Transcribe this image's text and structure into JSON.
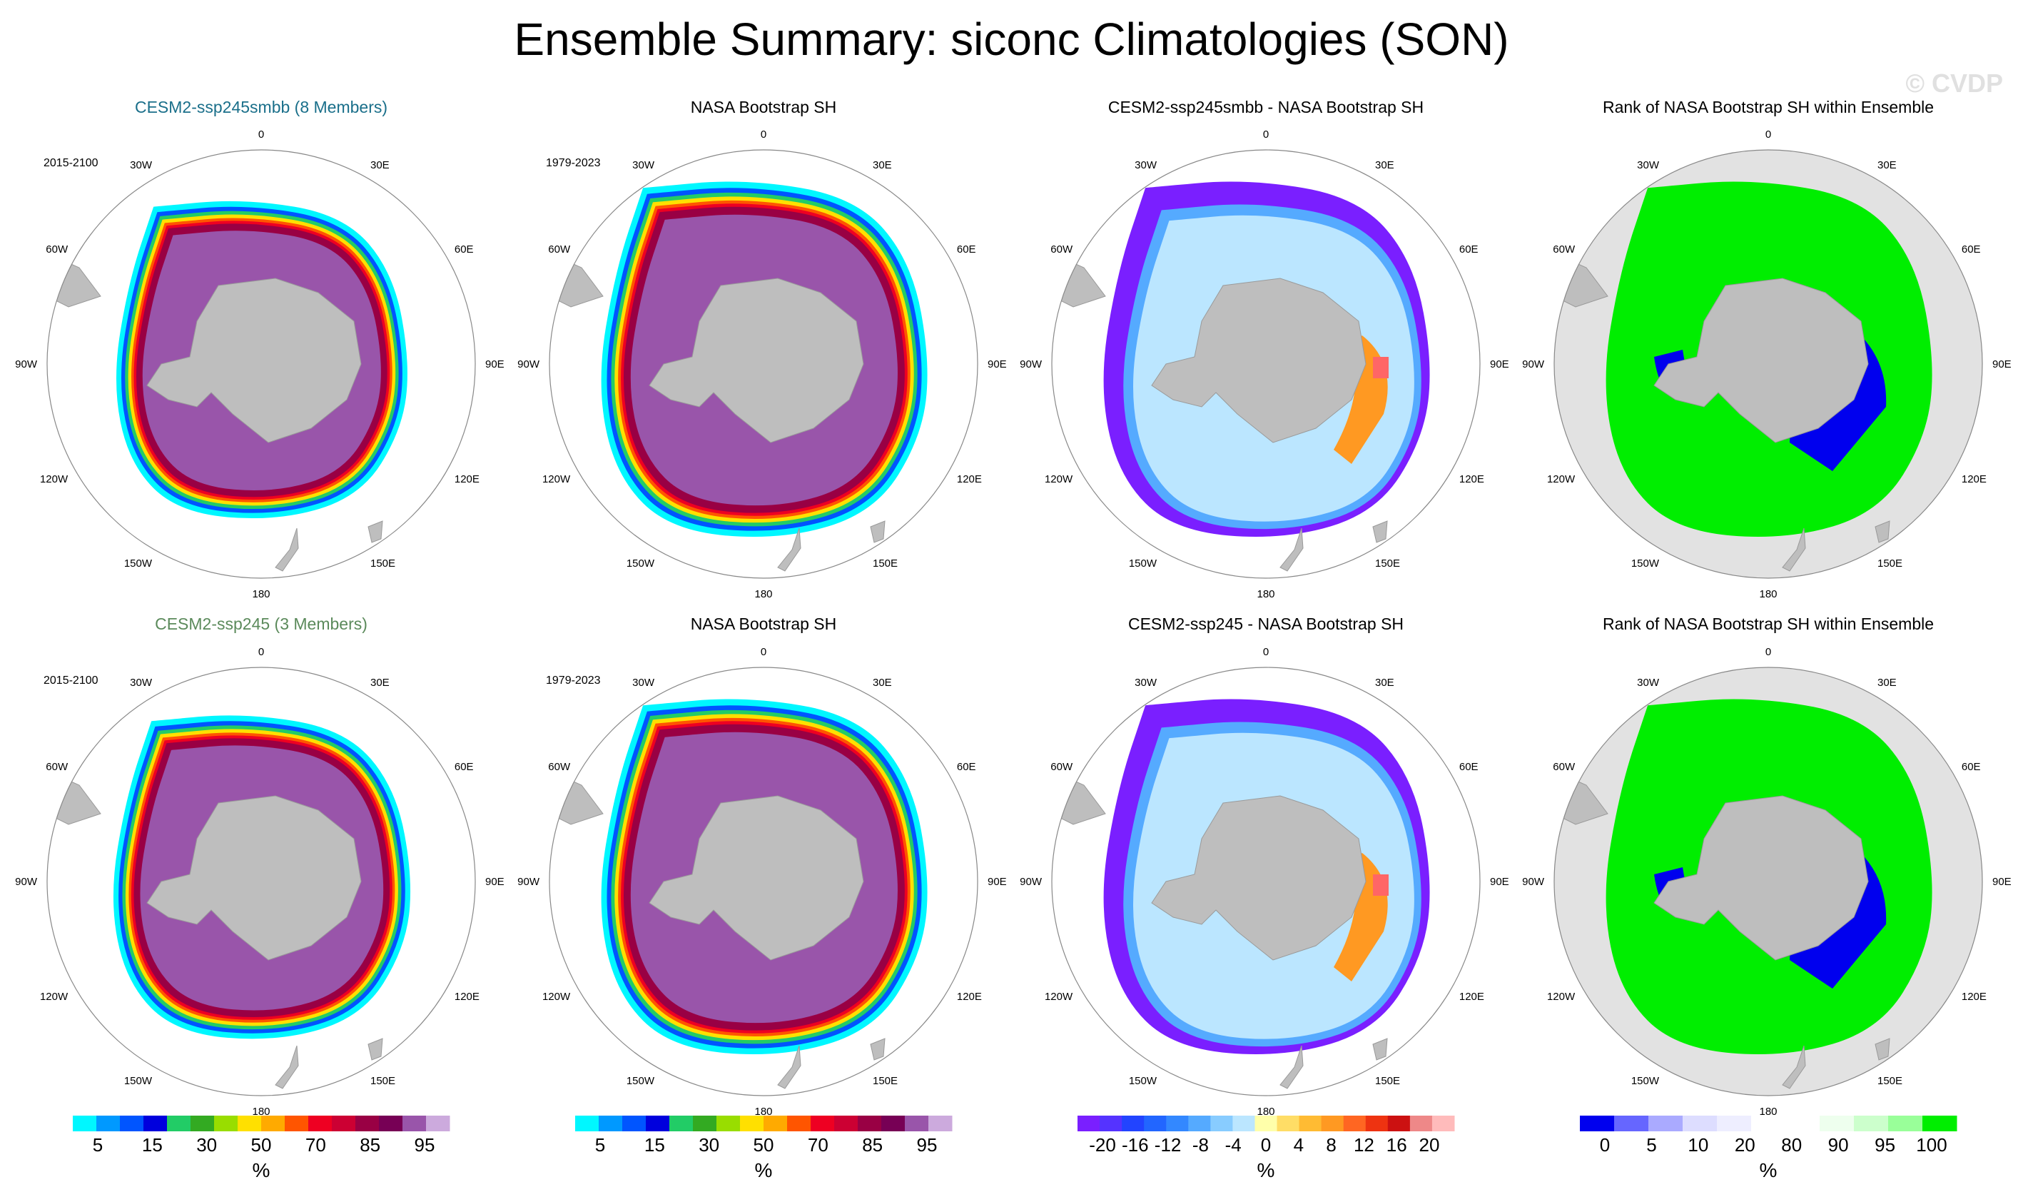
{
  "title": "Ensemble Summary: siconc Climatologies (SON)",
  "watermark": "© CVDP",
  "lon_labels": [
    "0",
    "30E",
    "60E",
    "90E",
    "120E",
    "150E",
    "180",
    "150W",
    "120W",
    "90W",
    "60W",
    "30W"
  ],
  "rows": [
    {
      "panels": [
        {
          "title": "CESM2-ssp245smbb (8 Members)",
          "title_color": "#1a6f8a",
          "period": "2015-2100",
          "kind": "conc",
          "scale": 1.0
        },
        {
          "title": "NASA Bootstrap SH",
          "title_color": "#000000",
          "period": "1979-2023",
          "kind": "conc",
          "scale": 1.12
        },
        {
          "title": "CESM2-ssp245smbb - NASA Bootstrap SH",
          "title_color": "#000000",
          "period": "",
          "kind": "diff",
          "scale": 1.12
        },
        {
          "title": "Rank of NASA Bootstrap SH within Ensemble",
          "title_color": "#000000",
          "period": "",
          "kind": "rank",
          "scale": 1.12
        }
      ]
    },
    {
      "panels": [
        {
          "title": "CESM2-ssp245 (3 Members)",
          "title_color": "#5b8a5b",
          "period": "2015-2100",
          "kind": "conc",
          "scale": 1.02
        },
        {
          "title": "NASA Bootstrap SH",
          "title_color": "#000000",
          "period": "1979-2023",
          "kind": "conc",
          "scale": 1.12
        },
        {
          "title": "CESM2-ssp245 - NASA Bootstrap SH",
          "title_color": "#000000",
          "period": "",
          "kind": "diff",
          "scale": 1.12
        },
        {
          "title": "Rank of NASA Bootstrap SH within Ensemble",
          "title_color": "#000000",
          "period": "",
          "kind": "rank",
          "scale": 1.12
        }
      ]
    }
  ],
  "colorbars": [
    {
      "unit": "%",
      "colors": [
        "#00f7ff",
        "#0099ff",
        "#0055ff",
        "#0000dd",
        "#22cc66",
        "#33aa22",
        "#99dd00",
        "#ffe000",
        "#ffaa00",
        "#ff5500",
        "#ee0022",
        "#cc0033",
        "#990044",
        "#770055",
        "#9955aa",
        "#ccaadd"
      ],
      "ticks": [
        "5",
        "15",
        "30",
        "50",
        "70",
        "85",
        "95"
      ]
    },
    {
      "unit": "%",
      "colors": [
        "#00f7ff",
        "#0099ff",
        "#0055ff",
        "#0000dd",
        "#22cc66",
        "#33aa22",
        "#99dd00",
        "#ffe000",
        "#ffaa00",
        "#ff5500",
        "#ee0022",
        "#cc0033",
        "#990044",
        "#770055",
        "#9955aa",
        "#ccaadd"
      ],
      "ticks": [
        "5",
        "15",
        "30",
        "50",
        "70",
        "85",
        "95"
      ]
    },
    {
      "unit": "%",
      "colors": [
        "#7a1fff",
        "#5533ff",
        "#2244ff",
        "#2266ff",
        "#3388ff",
        "#55aaff",
        "#88ccff",
        "#bbe6ff",
        "#ffffaa",
        "#ffdd66",
        "#ffbb33",
        "#ff9922",
        "#ff6622",
        "#ee3311",
        "#cc1111",
        "#ee8888",
        "#ffbbbb"
      ],
      "ticks": [
        "-20",
        "-16",
        "-12",
        "-8",
        "-4",
        "0",
        "4",
        "8",
        "12",
        "16",
        "20"
      ]
    },
    {
      "unit": "%",
      "colors": [
        "#0000ee",
        "#6666ff",
        "#aaaaff",
        "#ddddff",
        "#eeeeff",
        "#ffffff",
        "#ffffff",
        "#eeffee",
        "#ccffcc",
        "#99ff99",
        "#00ee00"
      ],
      "ticks": [
        "0",
        "5",
        "10",
        "20",
        "80",
        "90",
        "95",
        "100"
      ]
    }
  ],
  "chart_data": {
    "type": "heatmap",
    "title": "Ensemble Summary: siconc Climatologies (SON)",
    "projection": "south polar stereographic",
    "variable": "siconc",
    "season": "SON",
    "units": "%",
    "concentration_levels": [
      5,
      10,
      15,
      20,
      30,
      40,
      50,
      60,
      70,
      75,
      85,
      90,
      95,
      99
    ],
    "difference_levels": [
      -20,
      -18,
      -16,
      -14,
      -12,
      -10,
      -8,
      -6,
      -4,
      -2,
      0,
      2,
      4,
      6,
      8,
      10,
      12,
      14,
      16,
      18,
      20
    ],
    "rank_levels": [
      0,
      5,
      10,
      20,
      80,
      90,
      95,
      100
    ],
    "ice_edge_lat_deg_by_lon": {
      "lon": [
        0,
        30,
        60,
        90,
        120,
        150,
        180,
        -150,
        -120,
        -90,
        -60,
        -30
      ],
      "model_smbb": [
        -57,
        -60,
        -61,
        -61,
        -62,
        -63,
        -63,
        -65,
        -67,
        -64,
        -58,
        -56
      ],
      "obs": [
        -55,
        -58,
        -60,
        -61,
        -61,
        -62,
        -62,
        -64,
        -65,
        -62,
        -57,
        -54
      ],
      "model_ssp245": [
        -57,
        -60,
        -61,
        -61,
        -62,
        -62,
        -63,
        -65,
        -66,
        -63,
        -58,
        -56
      ]
    }
  }
}
